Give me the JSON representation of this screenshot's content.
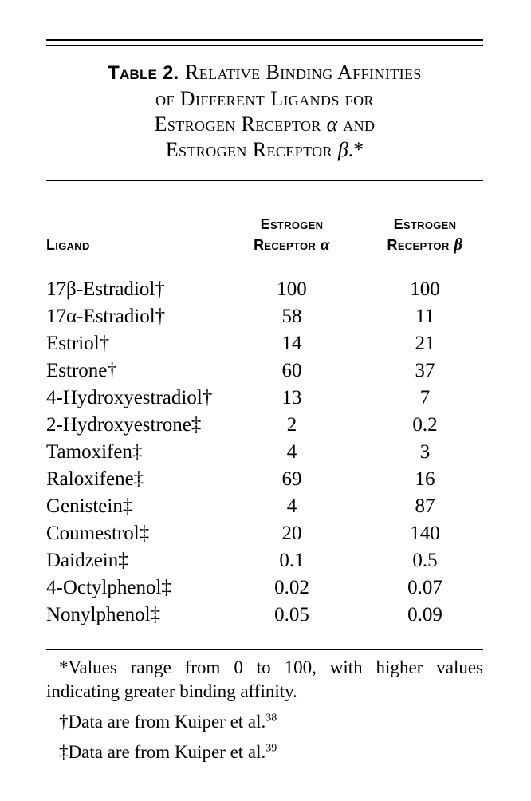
{
  "caption": {
    "label": "Table 2.",
    "line1": "Relative Binding Affinities",
    "line2": "of Different Ligands for",
    "line3_pre": "Estrogen Receptor ",
    "alpha": "α",
    "line3_post": " and",
    "line4_pre": "Estrogen Receptor ",
    "beta": "β",
    "line4_post": ".*"
  },
  "table": {
    "columns": {
      "ligand": "Ligand",
      "er_alpha": {
        "line1": "Estrogen",
        "line2": "Receptor",
        "symbol": "α"
      },
      "er_beta": {
        "line1": "Estrogen",
        "line2": "Receptor",
        "symbol": "β"
      }
    },
    "rows": [
      {
        "ligand": "17β-Estradiol†",
        "er_alpha": "100",
        "er_beta": "100"
      },
      {
        "ligand": "17α-Estradiol†",
        "er_alpha": "58",
        "er_beta": "11"
      },
      {
        "ligand": "Estriol†",
        "er_alpha": "14",
        "er_beta": "21"
      },
      {
        "ligand": "Estrone†",
        "er_alpha": "60",
        "er_beta": "37"
      },
      {
        "ligand": "4-Hydroxyestradiol†",
        "er_alpha": "13",
        "er_beta": "7"
      },
      {
        "ligand": "2-Hydroxyestrone‡",
        "er_alpha": "2",
        "er_beta": "0.2"
      },
      {
        "ligand": "Tamoxifen‡",
        "er_alpha": "4",
        "er_beta": "3"
      },
      {
        "ligand": "Raloxifene‡",
        "er_alpha": "69",
        "er_beta": "16"
      },
      {
        "ligand": "Genistein‡",
        "er_alpha": "4",
        "er_beta": "87"
      },
      {
        "ligand": "Coumestrol‡",
        "er_alpha": "20",
        "er_beta": "140"
      },
      {
        "ligand": "Daidzein‡",
        "er_alpha": "0.1",
        "er_beta": "0.5"
      },
      {
        "ligand": "4-Octylphenol‡",
        "er_alpha": "0.02",
        "er_beta": "0.07"
      },
      {
        "ligand": "Nonylphenol‡",
        "er_alpha": "0.05",
        "er_beta": "0.09"
      }
    ]
  },
  "footnotes": [
    {
      "marker": "*",
      "text": "Values range from 0 to 100, with higher values indicating greater binding affinity.",
      "ref": ""
    },
    {
      "marker": "†",
      "text": "Data are from Kuiper et al.",
      "ref": "38"
    },
    {
      "marker": "‡",
      "text": "Data are from Kuiper et al.",
      "ref": "39"
    }
  ]
}
